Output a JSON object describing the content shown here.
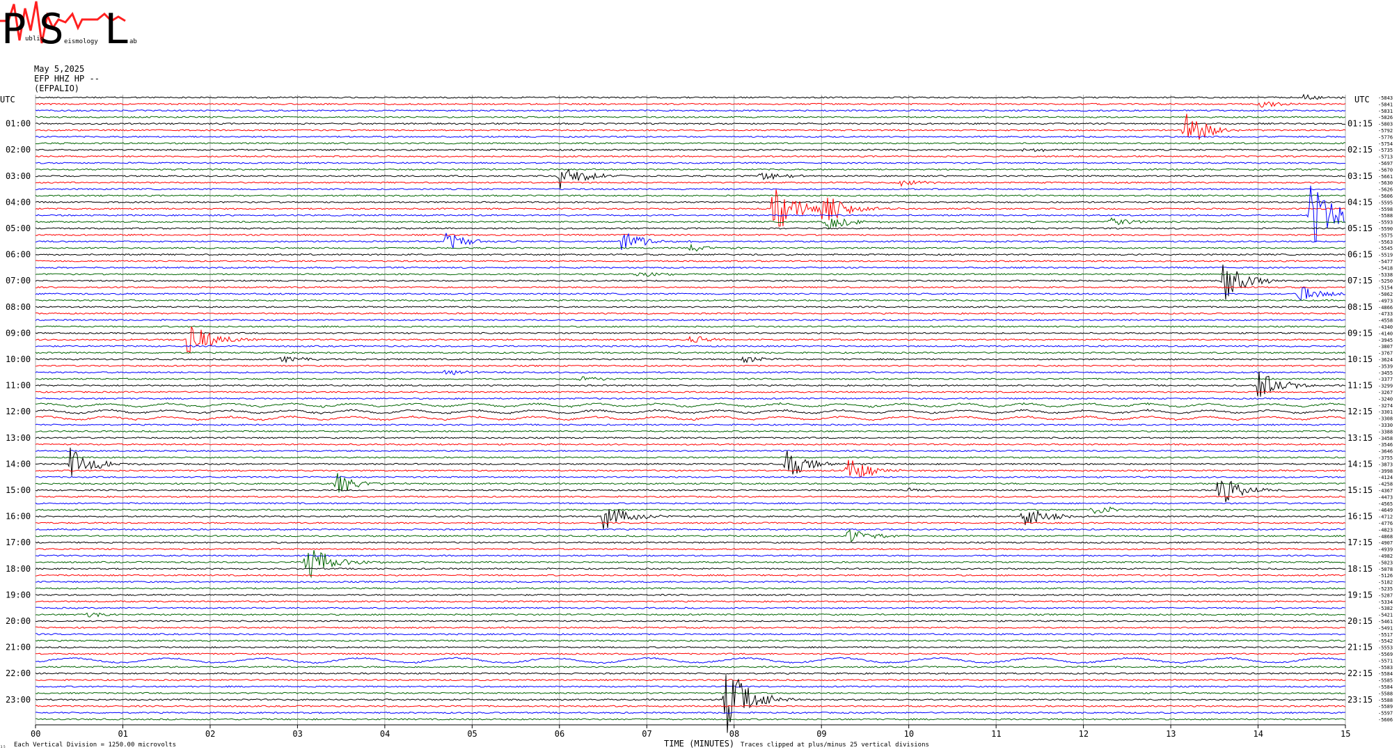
{
  "logo": {
    "big_letters": [
      "P",
      "S",
      "L"
    ],
    "small_text": [
      "ublic",
      "eismology",
      "ab"
    ]
  },
  "header": {
    "date": "May 5,2025",
    "channel": "EFP HHZ HP --",
    "station": "(EFPALIO)"
  },
  "chart_data": {
    "type": "line",
    "title": "",
    "xlabel": "TIME (MINUTES)",
    "x_ticks": [
      "00",
      "01",
      "02",
      "03",
      "04",
      "05",
      "06",
      "07",
      "08",
      "09",
      "10",
      "11",
      "12",
      "13",
      "14",
      "15"
    ],
    "xlim": [
      0,
      15
    ],
    "left_axis_label": "UTC",
    "right_axis_label": "UTC",
    "left_hour_labels": [
      "01:00",
      "02:00",
      "03:00",
      "04:00",
      "05:00",
      "06:00",
      "07:00",
      "08:00",
      "09:00",
      "10:00",
      "11:00",
      "12:00",
      "13:00",
      "14:00",
      "15:00",
      "16:00",
      "17:00",
      "18:00",
      "19:00",
      "20:00",
      "21:00",
      "22:00",
      "23:00"
    ],
    "right_hour_labels": [
      "01:15",
      "02:15",
      "03:15",
      "04:15",
      "05:15",
      "06:15",
      "07:15",
      "08:15",
      "09:15",
      "10:15",
      "11:15",
      "12:15",
      "13:15",
      "14:15",
      "15:15",
      "16:15",
      "17:15",
      "18:15",
      "19:15",
      "20:15",
      "21:15",
      "22:15",
      "23:15"
    ],
    "trace_count": 96,
    "trace_minutes": 15,
    "trace_colors": [
      "#000000",
      "#ff0000",
      "#0000ff",
      "#006400"
    ],
    "trace_offsets": [
      -5843,
      -5841,
      -5831,
      -5826,
      -5803,
      -5792,
      -5776,
      -5754,
      -5735,
      -5713,
      -5697,
      -5670,
      -5661,
      -5630,
      -5626,
      -5606,
      -5595,
      -5598,
      -5588,
      -5593,
      -5590,
      -5575,
      -5563,
      -5545,
      -5519,
      -5477,
      -5418,
      -5338,
      -5250,
      -5154,
      -5062,
      -4973,
      -4866,
      -4733,
      -4558,
      -4340,
      -4140,
      -3945,
      -3807,
      -3767,
      -3624,
      -3539,
      -3455,
      -3377,
      -3299,
      -3267,
      -3240,
      -3274,
      -3301,
      -3308,
      -3330,
      -3388,
      -3458,
      -3546,
      -3646,
      -3755,
      -3873,
      -3998,
      -4124,
      -4258,
      -4367,
      -4473,
      -4565,
      -4649,
      -4712,
      -4776,
      -4823,
      -4868,
      -4907,
      -4939,
      -4982,
      -5023,
      -5078,
      -5126,
      -5182,
      -5235,
      -5287,
      -5334,
      -5382,
      -5421,
      -5461,
      -5491,
      -5517,
      -5542,
      -5553,
      -5569,
      -5571,
      -5583,
      -5584,
      -5585,
      -5584,
      -5588,
      -5588,
      -5589,
      -5597,
      -5606
    ],
    "events": [
      {
        "trace": 0,
        "minute": 14.5,
        "amplitude": 0.4
      },
      {
        "trace": 1,
        "minute": 14.0,
        "amplitude": 0.4
      },
      {
        "trace": 5,
        "minute": 13.15,
        "amplitude": 2.3
      },
      {
        "trace": 8,
        "minute": 11.3,
        "amplitude": 0.3
      },
      {
        "trace": 12,
        "minute": 6.0,
        "amplitude": 1.6
      },
      {
        "trace": 12,
        "minute": 8.3,
        "amplitude": 0.5
      },
      {
        "trace": 13,
        "minute": 9.9,
        "amplitude": 0.4
      },
      {
        "trace": 17,
        "minute": 8.45,
        "amplitude": 3.0
      },
      {
        "trace": 17,
        "minute": 9.0,
        "amplitude": 2.2
      },
      {
        "trace": 18,
        "minute": 14.6,
        "amplitude": 4.0
      },
      {
        "trace": 19,
        "minute": 9.05,
        "amplitude": 1.0
      },
      {
        "trace": 19,
        "minute": 12.3,
        "amplitude": 0.5
      },
      {
        "trace": 22,
        "minute": 4.7,
        "amplitude": 1.0
      },
      {
        "trace": 22,
        "minute": 6.7,
        "amplitude": 1.2
      },
      {
        "trace": 23,
        "minute": 7.5,
        "amplitude": 0.4
      },
      {
        "trace": 27,
        "minute": 6.9,
        "amplitude": 0.3
      },
      {
        "trace": 28,
        "minute": 13.6,
        "amplitude": 2.2
      },
      {
        "trace": 30,
        "minute": 14.45,
        "amplitude": 1.0
      },
      {
        "trace": 37,
        "minute": 1.75,
        "amplitude": 2.2
      },
      {
        "trace": 37,
        "minute": 7.5,
        "amplitude": 0.5
      },
      {
        "trace": 40,
        "minute": 2.8,
        "amplitude": 0.4
      },
      {
        "trace": 40,
        "minute": 8.1,
        "amplitude": 0.4
      },
      {
        "trace": 42,
        "minute": 4.7,
        "amplitude": 0.4
      },
      {
        "trace": 43,
        "minute": 6.2,
        "amplitude": 0.4
      },
      {
        "trace": 44,
        "minute": 14.0,
        "amplitude": 1.6
      },
      {
        "trace": 56,
        "minute": 0.4,
        "amplitude": 1.8
      },
      {
        "trace": 56,
        "minute": 8.6,
        "amplitude": 1.6
      },
      {
        "trace": 57,
        "minute": 9.3,
        "amplitude": 1.4
      },
      {
        "trace": 59,
        "minute": 3.45,
        "amplitude": 1.2
      },
      {
        "trace": 60,
        "minute": 13.55,
        "amplitude": 1.8
      },
      {
        "trace": 60,
        "minute": 10.0,
        "amplitude": 0.3
      },
      {
        "trace": 63,
        "minute": 12.1,
        "amplitude": 0.6
      },
      {
        "trace": 64,
        "minute": 6.5,
        "amplitude": 1.6
      },
      {
        "trace": 64,
        "minute": 11.3,
        "amplitude": 1.4
      },
      {
        "trace": 67,
        "minute": 9.3,
        "amplitude": 0.8
      },
      {
        "trace": 71,
        "minute": 3.1,
        "amplitude": 2.2
      },
      {
        "trace": 79,
        "minute": 0.6,
        "amplitude": 0.3
      },
      {
        "trace": 92,
        "minute": 7.9,
        "amplitude": 4.0
      }
    ],
    "clip_divisions": 25,
    "vertical_division_microvolts": 1250.0
  },
  "footer": {
    "division_text": "Each Vertical Division = 1250.00 microvolts",
    "clip_text": "Traces clipped at plus/minus 25 vertical divisions",
    "corner_mark": "₁₅"
  }
}
